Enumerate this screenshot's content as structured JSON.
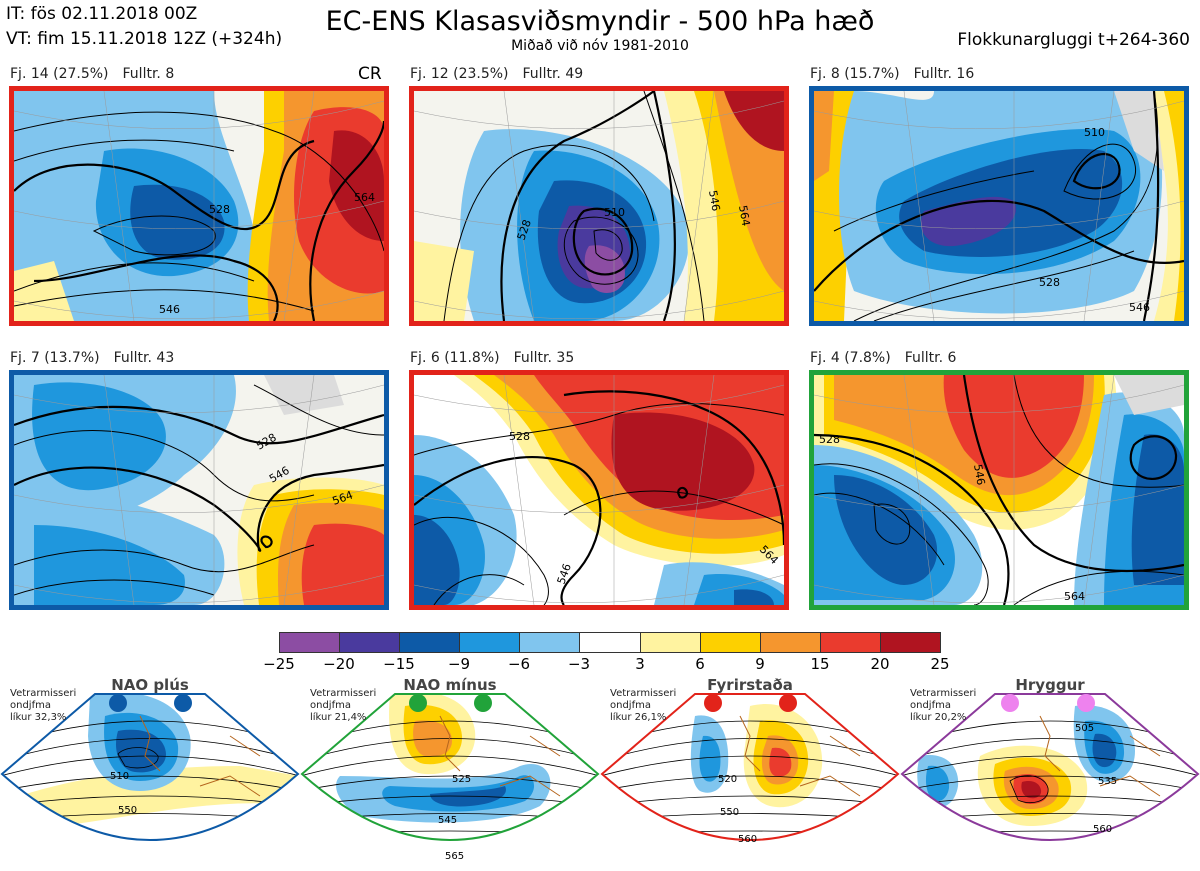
{
  "header": {
    "it": "IT: fös 02.11.2018 00Z",
    "vt": "VT: fim 15.11.2018 12Z  (+324h)",
    "title": "EC-ENS Klasasviðsmyndir - 500 hPa hæð",
    "subtitle": "Miðað við nóv 1981-2010",
    "window": "Flokkunargluggi t+264-360"
  },
  "clusters": [
    {
      "label": "Fj. 14 (27.5%)",
      "rep": "Fulltr. 8",
      "frame": "#e2231a",
      "extra": "CR",
      "contours": [
        "528",
        "546",
        "564"
      ]
    },
    {
      "label": "Fj. 12 (23.5%)",
      "rep": "Fulltr. 49",
      "frame": "#e2231a",
      "contours": [
        "510",
        "528",
        "546",
        "564"
      ]
    },
    {
      "label": "Fj. 8 (15.7%)",
      "rep": "Fulltr. 16",
      "frame": "#0d5aa7",
      "contours": [
        "510",
        "528",
        "546"
      ]
    },
    {
      "label": "Fj. 7 (13.7%)",
      "rep": "Fulltr. 43",
      "frame": "#0d5aa7",
      "contours": [
        "528",
        "546",
        "564"
      ]
    },
    {
      "label": "Fj. 6 (11.8%)",
      "rep": "Fulltr. 35",
      "frame": "#e2231a",
      "contours": [
        "528",
        "546",
        "564"
      ]
    },
    {
      "label": "Fj. 4 (7.8%)",
      "rep": "Fulltr. 6",
      "frame": "#21a33a",
      "contours": [
        "528",
        "546",
        "564"
      ]
    }
  ],
  "colorbar": {
    "colors": [
      "#8c4da3",
      "#4a3a9e",
      "#0d5aa7",
      "#1f97dd",
      "#80c5ee",
      "#ffffff",
      "#fff3a0",
      "#fdd000",
      "#f5962e",
      "#ea3b2e",
      "#b01420"
    ],
    "ticks": [
      "−25",
      "−20",
      "−15",
      "−9",
      "−6",
      "−3",
      "3",
      "6",
      "9",
      "15",
      "20",
      "25"
    ]
  },
  "regimes": [
    {
      "title": "NAO plús",
      "note": [
        "Vetrarmisseri",
        "ondjfma",
        "líkur 32,3%"
      ],
      "color": "#0d5aa7",
      "contours": [
        "510",
        "550"
      ]
    },
    {
      "title": "NAO mínus",
      "note": [
        "Vetrarmisseri",
        "ondjfma",
        "líkur 21,4%"
      ],
      "color": "#21a33a",
      "contours": [
        "525",
        "545",
        "565"
      ]
    },
    {
      "title": "Fyrirstaða",
      "note": [
        "Vetrarmisseri",
        "ondjfma",
        "líkur 26,1%"
      ],
      "color": "#e2231a",
      "contours": [
        "520",
        "550",
        "560"
      ]
    },
    {
      "title": "Hryggur",
      "note": [
        "Vetrarmisseri",
        "ondjfma",
        "líkur 20,2%"
      ],
      "color": "#8b3a9b",
      "dotColor": "#ee82ee",
      "contours": [
        "505",
        "535",
        "560"
      ]
    }
  ]
}
